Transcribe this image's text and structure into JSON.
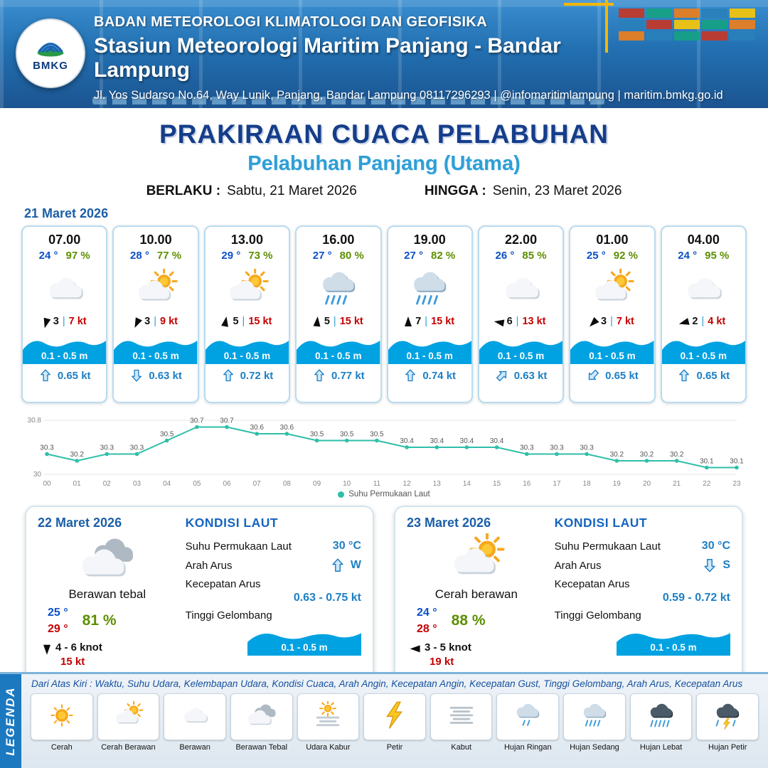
{
  "colors": {
    "accent": "#1b5fa8",
    "title_navy": "#153d8a",
    "subtitle_blue": "#2e9fd6",
    "temp_blue": "#0b50c8",
    "humidity_green": "#5d8f00",
    "alert_red": "#c40000",
    "wave_blue": "#00a2e2",
    "current_blue": "#1d7fc4",
    "legend_blue": "#1c79c0",
    "line_teal": "#2fbfa8"
  },
  "header": {
    "logo_text": "BMKG",
    "agency": "BADAN METEOROLOGI KLIMATOLOGI DAN GEOFISIKA",
    "station": "Stasiun Meteorologi Maritim Panjang - Bandar Lampung",
    "address": "Jl. Yos Sudarso No.64, Way Lunik, Panjang, Bandar Lampung 08117296293 | @infomaritimlampung | maritim.bmkg.go.id"
  },
  "title": {
    "main": "PRAKIRAAN CUACA PELABUHAN",
    "subtitle": "Pelabuhan Panjang (Utama)",
    "berlaku_label": "BERLAKU :",
    "berlaku_value": "Sabtu, 21 Maret 2026",
    "hingga_label": "HINGGA :",
    "hingga_value": "Senin, 23 Maret 2026"
  },
  "labels": {
    "sep": "|"
  },
  "forecast_date": "21 Maret 2026",
  "hourly": [
    {
      "time": "07.00",
      "temp": "24 °",
      "humidity": "97 %",
      "icon": "berawan",
      "wind_rot": 195,
      "wind_num": "3",
      "wind_speed": "7 kt",
      "wave": "0.1 - 0.5 m",
      "current_rot": 0,
      "current_speed": "0.65 kt"
    },
    {
      "time": "10.00",
      "temp": "28 °",
      "humidity": "77 %",
      "icon": "cerah-berawan",
      "wind_rot": 205,
      "wind_num": "3",
      "wind_speed": "9 kt",
      "wave": "0.1 - 0.5 m",
      "current_rot": 180,
      "current_speed": "0.63 kt"
    },
    {
      "time": "13.00",
      "temp": "29 °",
      "humidity": "73 %",
      "icon": "cerah-berawan",
      "wind_rot": 10,
      "wind_num": "5",
      "wind_speed": "15 kt",
      "wave": "0.1 - 0.5 m",
      "current_rot": 0,
      "current_speed": "0.72 kt"
    },
    {
      "time": "16.00",
      "temp": "27 °",
      "humidity": "80 %",
      "icon": "hujan-sedang",
      "wind_rot": 5,
      "wind_num": "5",
      "wind_speed": "15 kt",
      "wave": "0.1 - 0.5 m",
      "current_rot": 0,
      "current_speed": "0.77 kt"
    },
    {
      "time": "19.00",
      "temp": "27 °",
      "humidity": "82 %",
      "icon": "hujan-sedang",
      "wind_rot": 0,
      "wind_num": "7",
      "wind_speed": "15 kt",
      "wave": "0.1 - 0.5 m",
      "current_rot": 0,
      "current_speed": "0.74 kt"
    },
    {
      "time": "22.00",
      "temp": "26 °",
      "humidity": "85 %",
      "icon": "berawan",
      "wind_rot": 280,
      "wind_num": "6",
      "wind_speed": "13 kt",
      "wave": "0.1 - 0.5 m",
      "current_rot": 45,
      "current_speed": "0.63 kt"
    },
    {
      "time": "01.00",
      "temp": "25 °",
      "humidity": "92 %",
      "icon": "cerah-berawan",
      "wind_rot": 225,
      "wind_num": "3",
      "wind_speed": "7 kt",
      "wave": "0.1 - 0.5 m",
      "current_rot": 225,
      "current_speed": "0.65 kt"
    },
    {
      "time": "04.00",
      "temp": "24 °",
      "humidity": "95 %",
      "icon": "berawan",
      "wind_rot": 255,
      "wind_num": "2",
      "wind_speed": "4 kt",
      "wave": "0.1 - 0.5 m",
      "current_rot": 0,
      "current_speed": "0.65 kt"
    }
  ],
  "chart_data": {
    "type": "line",
    "x": [
      "00",
      "01",
      "02",
      "03",
      "04",
      "05",
      "06",
      "07",
      "08",
      "09",
      "10",
      "11",
      "12",
      "13",
      "14",
      "15",
      "16",
      "17",
      "18",
      "19",
      "20",
      "21",
      "22",
      "23"
    ],
    "series": [
      {
        "name": "Suhu Permukaan Laut",
        "values": [
          30.3,
          30.2,
          30.3,
          30.3,
          30.5,
          30.7,
          30.7,
          30.6,
          30.6,
          30.5,
          30.5,
          30.5,
          30.4,
          30.4,
          30.4,
          30.4,
          30.3,
          30.3,
          30.3,
          30.2,
          30.2,
          30.2,
          30.1,
          30.1
        ]
      }
    ],
    "ylim": [
      30,
      30.8
    ],
    "yticks": [
      30,
      30.8
    ],
    "line_color": "#2fbfa8",
    "legend_position": "bottom",
    "grid": true
  },
  "daily": [
    {
      "date": "22 Maret 2026",
      "icon": "berawan-tebal",
      "condition": "Berawan tebal",
      "temp_min": "25 °",
      "temp_max": "29 °",
      "humidity": "81 %",
      "wind_rot": 180,
      "wind_range": "4 - 6 knot",
      "gust": "15 kt",
      "sea": {
        "title": "KONDISI LAUT",
        "sst_label": "Suhu Permukaan Laut",
        "sst": "30 °C",
        "dir_label": "Arah Arus",
        "dir_rot": 0,
        "dir": "W",
        "speed_label": "Kecepatan Arus",
        "speed": "0.63 - 0.75 kt",
        "wave_label": "Tinggi Gelombang",
        "wave": "0.1 - 0.5 m"
      }
    },
    {
      "date": "23 Maret 2026",
      "icon": "cerah-berawan",
      "condition": "Cerah berawan",
      "temp_min": "24 °",
      "temp_max": "28 °",
      "humidity": "88 %",
      "wind_rot": 270,
      "wind_range": "3 - 5 knot",
      "gust": "19 kt",
      "sea": {
        "title": "KONDISI LAUT",
        "sst_label": "Suhu Permukaan Laut",
        "sst": "30 °C",
        "dir_label": "Arah Arus",
        "dir_rot": 180,
        "dir": "S",
        "speed_label": "Kecepatan Arus",
        "speed": "0.59 - 0.72 kt",
        "wave_label": "Tinggi Gelombang",
        "wave": "0.1 - 0.5 m"
      }
    }
  ],
  "legend": {
    "title": "LEGENDA",
    "note": "Dari Atas Kiri : Waktu, Suhu Udara, Kelembapan Udara, Kondisi Cuaca, Arah Angin, Kecepatan Angin, Kecepatan Gust, Tinggi Gelombang, Arah Arus, Kecepatan Arus",
    "items": [
      {
        "label": "Cerah",
        "icon": "cerah"
      },
      {
        "label": "Cerah Berawan",
        "icon": "cerah-berawan"
      },
      {
        "label": "Berawan",
        "icon": "berawan"
      },
      {
        "label": "Berawan Tebal",
        "icon": "berawan-tebal"
      },
      {
        "label": "Udara Kabur",
        "icon": "udara-kabur"
      },
      {
        "label": "Petir",
        "icon": "petir"
      },
      {
        "label": "Kabut",
        "icon": "kabut"
      },
      {
        "label": "Hujan Ringan",
        "icon": "hujan-ringan"
      },
      {
        "label": "Hujan Sedang",
        "icon": "hujan-sedang"
      },
      {
        "label": "Hujan Lebat",
        "icon": "hujan-lebat"
      },
      {
        "label": "Hujan Petir",
        "icon": "hujan-petir"
      }
    ]
  }
}
